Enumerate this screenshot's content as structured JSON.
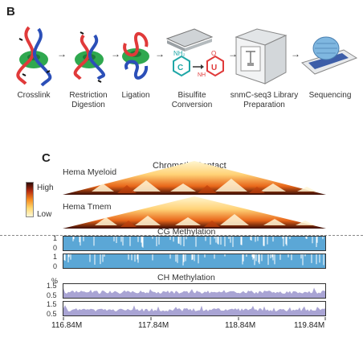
{
  "panel_b": {
    "letter": "B",
    "steps": [
      {
        "icon": "crosslink-icon",
        "label": "Crosslink"
      },
      {
        "icon": "restriction-digestion-icon",
        "label": "Restriction Digestion"
      },
      {
        "icon": "ligation-icon",
        "label": "Ligation"
      },
      {
        "icon": "bisulfite-conversion-icon",
        "label": "Bisulfite Conversion"
      },
      {
        "icon": "library-preparation-icon",
        "label": "snmC-seq3 Library Preparation"
      },
      {
        "icon": "sequencing-icon",
        "label": "Sequencing"
      }
    ],
    "bisulfite_letters": {
      "nh2": "NH₂",
      "c": "C",
      "u": "U",
      "nh": "NH",
      "o": "O"
    }
  },
  "panel_c": {
    "letter": "C",
    "title_contact": "Chromatin Contact",
    "track_myeloid": "Hema Myeloid",
    "track_tmem": "Hema Tmem",
    "colorbar_high": "High",
    "colorbar_low": "Low",
    "cg_title": "CG Methylation",
    "ch_title": "CH Methylation",
    "cg_ticks": [
      "1",
      "0",
      "1",
      "0"
    ],
    "ch_ticks": [
      "1.5",
      "0.5",
      "1.5",
      "0.5"
    ],
    "percent": "%",
    "x_ticks": [
      "116.84M",
      "117.84M",
      "118.84M",
      "119.84M"
    ],
    "colors": {
      "cg": "#5ba7d6",
      "ch": "#a9a4d4",
      "heat_high": "#2b0a05",
      "heat_mid": "#e86a1a",
      "heat_low": "#fff4c2"
    }
  }
}
